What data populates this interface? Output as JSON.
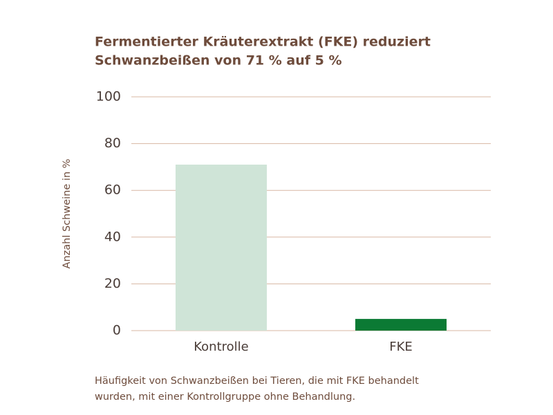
{
  "chart_data": {
    "type": "bar",
    "title": [
      "Fermentierter Kräuterextrakt (FKE) reduziert",
      "Schwanzbeißen von 71 % auf 5 %"
    ],
    "y_label": "Anzahl Schweine in %",
    "categories": [
      "Kontrolle",
      "FKE"
    ],
    "values": [
      71,
      5
    ],
    "colors": [
      "#cfe4d7",
      "#0b7a34"
    ],
    "ylim": [
      0,
      100
    ],
    "yticks": [
      0,
      20,
      40,
      60,
      80,
      100
    ],
    "grid": true,
    "caption": [
      "Häufigkeit von Schwanzbeißen bei Tieren, die mit FKE behandelt",
      "wurden, mit einer Kontrollgruppe ohne Behandlung."
    ]
  }
}
